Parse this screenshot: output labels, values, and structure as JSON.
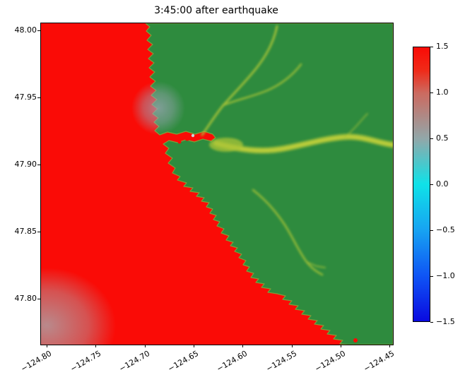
{
  "chart_data": {
    "type": "heatmap",
    "title": "3:45:00 after earthquake",
    "description": "Tsunami sea-surface elevation snapshot 3:45:00 after earthquake along the Washington outer coast near La Push. Offshore water (left) is saturated red at +1.5 or above; land (right) is green; yellow-green traces are river channels and estuary inundation; soft gray patches over the water are regions of intermediate elevation near 0.5.",
    "x_axis": {
      "label": "",
      "unit": "degrees longitude",
      "tick_labels": [
        "−124.80",
        "−124.75",
        "−124.70",
        "−124.65",
        "−124.60",
        "−124.55",
        "−124.50",
        "−124.45"
      ],
      "range": [
        -124.815,
        -124.425
      ],
      "tick_rotation_deg": 30
    },
    "y_axis": {
      "label": "",
      "unit": "degrees latitude",
      "tick_labels": [
        "48.00",
        "47.95",
        "47.90",
        "47.85",
        "47.80"
      ],
      "range": [
        47.765,
        48.005
      ]
    },
    "colorbar": {
      "vmin": -1.5,
      "vmax": 1.5,
      "tick_labels": [
        "1.5",
        "1.0",
        "0.5",
        "0.0",
        "−0.5",
        "−1.0",
        "−1.5"
      ],
      "stops_top_to_bottom": [
        {
          "value": 1.5,
          "color": "#fa0b06"
        },
        {
          "value": 1.25,
          "color": "#f02a18"
        },
        {
          "value": 1.0,
          "color": "#cc6a60"
        },
        {
          "value": 0.5,
          "color": "#92a7a9"
        },
        {
          "value": 0.0,
          "color": "#0fe2e8"
        },
        {
          "value": -0.5,
          "color": "#17a3f2"
        },
        {
          "value": -1.0,
          "color": "#0f55f5"
        },
        {
          "value": -1.5,
          "color": "#0a0ae0"
        }
      ]
    },
    "colors": {
      "ocean": "#fa0b06",
      "land": "#2e8b3e",
      "shore": "#7f9c39",
      "river": "#a9c437",
      "river_bright": "#c6d43c",
      "gray_patch": "#9aa4b4",
      "gray_patch_sw": "#a9a9ad",
      "harbor_dot_light": "#ccd6d6"
    },
    "features": [
      "saturated red ocean region west of coastline (value >= 1.5)",
      "green land region east of jagged coastline",
      "small red harbor/bay intrusion near 47.915 N, -124.64 E",
      "yellow-green estuary channel extending east from the bay",
      "branching yellow-green river system in the upper right (land)",
      "yellow-green river descending toward the coast in the lower right",
      "soft gray disturbance patch over water near the coast around 47.94 N",
      "large soft gray disturbance patch in the lower-left ocean corner"
    ],
    "grid": false,
    "legend": "none (colorbar on right)"
  }
}
